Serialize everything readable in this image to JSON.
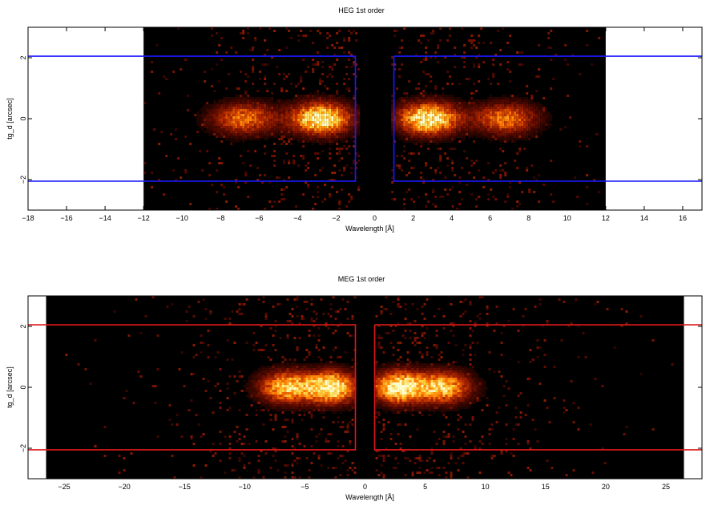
{
  "chart_data": [
    {
      "type": "heatmap",
      "title": "HEG 1st order",
      "xlabel": "Wavelength [Å]",
      "ylabel": "tg_d [arcsec]",
      "xlim": [
        -18,
        17
      ],
      "ylim": [
        -3,
        3
      ],
      "data_extent_x": [
        -12,
        12
      ],
      "xticks": [
        -18,
        -16,
        -14,
        -12,
        -10,
        -8,
        -6,
        -4,
        -2,
        0,
        2,
        4,
        6,
        8,
        10,
        12,
        14,
        16
      ],
      "xtick_labels": [
        "−18",
        "−16",
        "−14",
        "−12",
        "−10",
        "−8",
        "−6",
        "−4",
        "−2",
        "0",
        "2",
        "4",
        "6",
        "8",
        "10",
        "12",
        "14",
        "16"
      ],
      "yticks": [
        -2,
        0,
        2
      ],
      "ytick_labels": [
        "−2",
        "0",
        "2"
      ],
      "colormap": [
        "#000000",
        "#5a0a00",
        "#b42800",
        "#ff7800",
        "#ffd23c",
        "#ffffd2"
      ],
      "box_color": "#1a1aff",
      "regions": [
        {
          "x": [
            -30,
            -1
          ],
          "y": [
            -2.05,
            2.05
          ]
        },
        {
          "x": [
            1,
            30
          ],
          "y": [
            -2.05,
            2.05
          ]
        }
      ],
      "emission_peaks": [
        {
          "wavelength": -2.8,
          "width": 1.5,
          "intensity": 1.0
        },
        {
          "wavelength": -6.8,
          "width": 1.6,
          "intensity": 0.6
        },
        {
          "wavelength": 2.8,
          "width": 1.5,
          "intensity": 1.0
        },
        {
          "wavelength": 6.8,
          "width": 1.6,
          "intensity": 0.6
        }
      ]
    },
    {
      "type": "heatmap",
      "title": "MEG 1st order",
      "xlabel": "Wavelength [Å]",
      "ylabel": "tg_d [arcsec]",
      "xlim": [
        -28,
        28
      ],
      "ylim": [
        -3,
        3
      ],
      "data_extent_x": [
        -26.5,
        26.5
      ],
      "xticks": [
        -25,
        -20,
        -15,
        -10,
        -5,
        0,
        5,
        10,
        15,
        20,
        25
      ],
      "xtick_labels": [
        "−25",
        "−20",
        "−15",
        "−10",
        "−5",
        "0",
        "5",
        "10",
        "15",
        "20",
        "25"
      ],
      "yticks": [
        -2,
        0,
        2
      ],
      "ytick_labels": [
        "−2",
        "0",
        "2"
      ],
      "colormap": [
        "#000000",
        "#5a0a00",
        "#b42800",
        "#ff7800",
        "#ffd23c",
        "#ffffd2"
      ],
      "box_color": "#dd1a1a",
      "regions": [
        {
          "x": [
            -40,
            -0.8
          ],
          "y": [
            -2.05,
            2.05
          ]
        },
        {
          "x": [
            0.8,
            40
          ],
          "y": [
            -2.05,
            2.05
          ]
        }
      ],
      "emission_peaks": [
        {
          "wavelength": -2.8,
          "width": 2.0,
          "intensity": 1.0
        },
        {
          "wavelength": -6.5,
          "width": 2.2,
          "intensity": 0.8
        },
        {
          "wavelength": 2.8,
          "width": 2.0,
          "intensity": 1.0
        },
        {
          "wavelength": 6.5,
          "width": 2.2,
          "intensity": 0.8
        }
      ]
    }
  ]
}
